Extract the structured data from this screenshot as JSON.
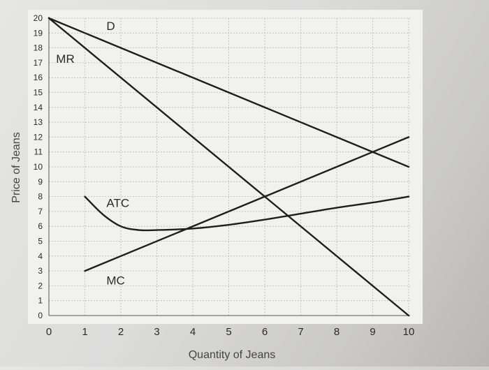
{
  "chart_data": {
    "type": "line",
    "xlabel": "Quantity of Jeans",
    "ylabel": "Price of Jeans",
    "xlim": [
      0,
      10
    ],
    "ylim": [
      0,
      20
    ],
    "x_ticks": [
      "0",
      "1",
      "2",
      "3",
      "4",
      "5",
      "6",
      "7",
      "8",
      "9",
      "10"
    ],
    "y_ticks": [
      "0",
      "1",
      "2",
      "3",
      "4",
      "5",
      "6",
      "7",
      "8",
      "9",
      "10",
      "11",
      "12",
      "13",
      "14",
      "15",
      "16",
      "17",
      "18",
      "19",
      "20"
    ],
    "grid": true,
    "series": [
      {
        "name": "D",
        "x": [
          0,
          10
        ],
        "y": [
          20,
          10
        ]
      },
      {
        "name": "MR",
        "x": [
          0,
          10
        ],
        "y": [
          20,
          0
        ]
      },
      {
        "name": "MC",
        "x": [
          1,
          10
        ],
        "y": [
          3,
          12
        ]
      },
      {
        "name": "ATC",
        "x": [
          1,
          1.5,
          2,
          2.5,
          3,
          4,
          5,
          6,
          7,
          8,
          9,
          10
        ],
        "y": [
          8,
          6.8,
          6,
          5.75,
          5.75,
          5.85,
          6.1,
          6.45,
          6.85,
          7.25,
          7.6,
          8
        ]
      }
    ],
    "labels": [
      {
        "text": "D",
        "x": 1.6,
        "y": 19.2
      },
      {
        "text": "MR",
        "x": 0.2,
        "y": 17.0
      },
      {
        "text": "ATC",
        "x": 1.6,
        "y": 7.3
      },
      {
        "text": "MC",
        "x": 1.6,
        "y": 2.1
      }
    ]
  }
}
